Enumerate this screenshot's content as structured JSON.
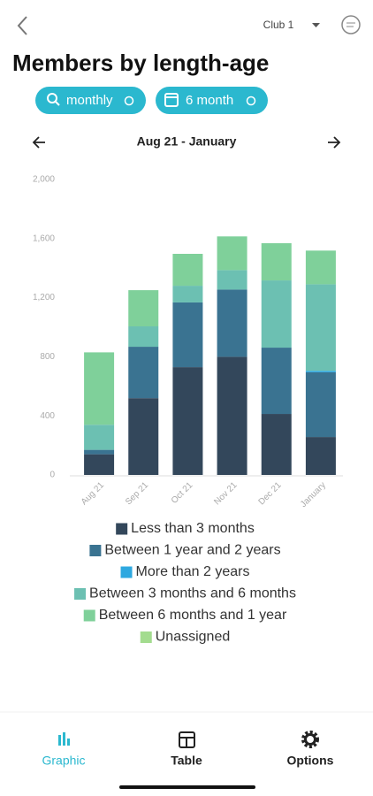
{
  "header": {
    "club": "Club 1"
  },
  "filters": [
    "monthly",
    "6 month"
  ],
  "period": "Aug 21 - January",
  "chart_data": {
    "type": "stacked-bar",
    "title": "Members by length-age",
    "categories": [
      "Aug 21",
      "Sep 21",
      "Oct 21",
      "Nov 21",
      "Dec 21",
      "January"
    ],
    "series": [
      {
        "name": "Less than 3 months",
        "color": "#33475b",
        "values": [
          140,
          520,
          730,
          800,
          413,
          257
        ]
      },
      {
        "name": "Between 1 year and 2 years",
        "color": "#3a7391",
        "values": [
          30,
          348,
          438,
          455,
          449,
          438
        ]
      },
      {
        "name": "More than 2 years",
        "color": "#2ea8e0",
        "values": [
          0,
          0,
          0,
          0,
          0,
          10
        ]
      },
      {
        "name": "Between 3 months and 6 months",
        "color": "#6cc0b2",
        "values": [
          170,
          138,
          113,
          132,
          455,
          586
        ]
      },
      {
        "name": "Between 6 months and 1 year",
        "color": "#7fd09a",
        "values": [
          490,
          245,
          216,
          228,
          252,
          228
        ]
      },
      {
        "name": "Unassigned",
        "color": "#a3dc8f",
        "values": [
          0,
          0,
          0,
          0,
          0,
          0
        ]
      }
    ],
    "ylim": [
      0,
      2000
    ],
    "yticks": [
      0,
      400,
      800,
      {
        "value": 1200,
        "label": "1,200"
      },
      {
        "value": 1600,
        "label": "1,600"
      },
      {
        "value": 2000,
        "label": "2,000"
      }
    ],
    "grid": false
  },
  "tabs": [
    "Graphic",
    "Table",
    "Options"
  ]
}
